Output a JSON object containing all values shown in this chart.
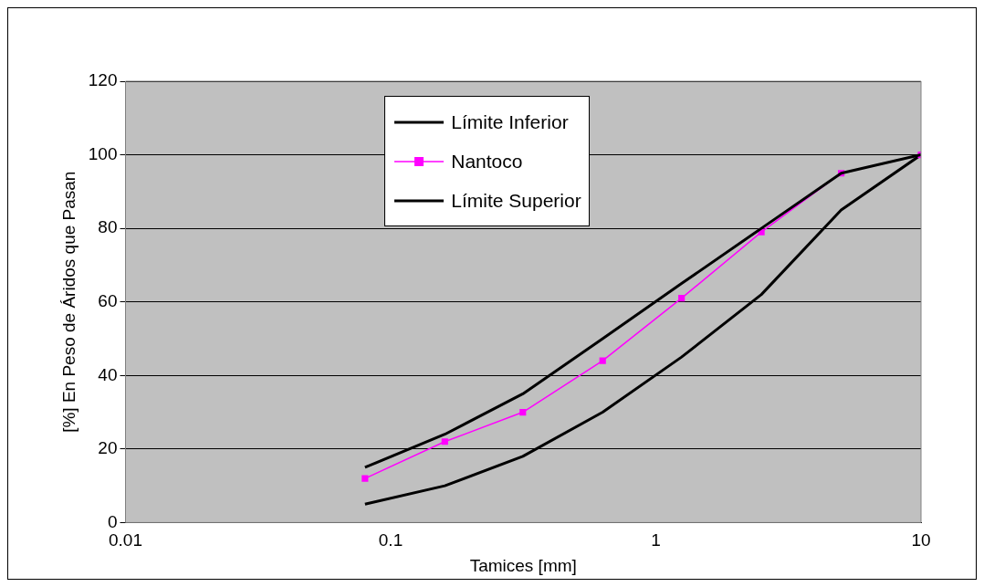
{
  "chart_data": {
    "type": "line",
    "xlabel": "Tamices [mm]",
    "ylabel": "[%] En Peso de Áridos que Pasan",
    "x": [
      0.08,
      0.16,
      0.315,
      0.63,
      1.25,
      2.5,
      5,
      10
    ],
    "series": [
      {
        "name": "Límite Inferior",
        "color": "#000000",
        "marker": "none",
        "values": [
          15,
          24,
          35,
          50,
          65,
          80,
          95,
          100
        ]
      },
      {
        "name": "Nantoco",
        "color": "#ff00ff",
        "marker": "square",
        "values": [
          12,
          22,
          30,
          44,
          61,
          79,
          95,
          100
        ]
      },
      {
        "name": "Límite Superior",
        "color": "#000000",
        "marker": "none",
        "values": [
          5,
          10,
          18,
          30,
          45,
          62,
          85,
          100
        ]
      }
    ],
    "log": "x",
    "xlim": [
      0.01,
      10
    ],
    "xticks": [
      0.01,
      0.1,
      1,
      10
    ],
    "ylim": [
      0,
      120
    ],
    "yticks": [
      0,
      20,
      40,
      60,
      80,
      100,
      120
    ],
    "grid": "y",
    "legend": "top"
  }
}
